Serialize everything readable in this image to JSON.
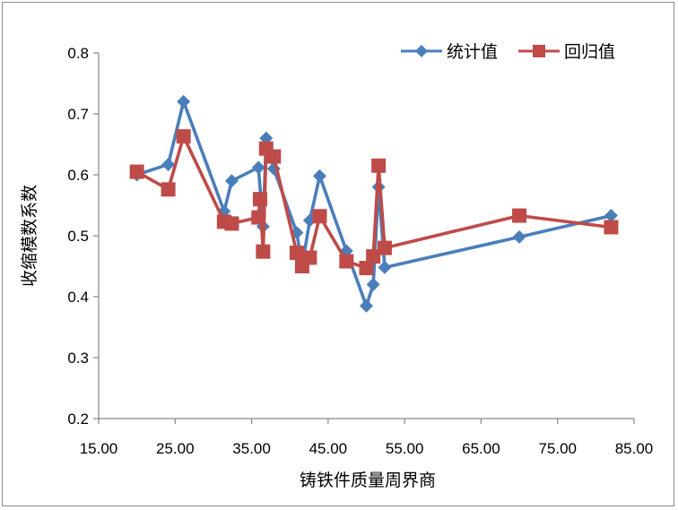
{
  "chart_data": {
    "type": "line",
    "xlabel": "铸铁件质量周界商",
    "ylabel": "收缩模数系数",
    "xlim": [
      15,
      85
    ],
    "ylim": [
      0.2,
      0.8
    ],
    "x_ticks": [
      "15.00",
      "25.00",
      "35.00",
      "45.00",
      "55.00",
      "65.00",
      "75.00",
      "85.00"
    ],
    "y_ticks": [
      "0.2",
      "0.3",
      "0.4",
      "0.5",
      "0.6",
      "0.7",
      "0.8"
    ],
    "grid": false,
    "legend_position": "top-right",
    "series": [
      {
        "name": "统计值",
        "color": "#4a7ebb",
        "marker": "diamond",
        "points": [
          [
            20.0,
            0.6
          ],
          [
            24.1,
            0.617
          ],
          [
            26.1,
            0.72
          ],
          [
            31.4,
            0.54
          ],
          [
            32.4,
            0.59
          ],
          [
            35.9,
            0.612
          ],
          [
            36.5,
            0.515
          ],
          [
            36.9,
            0.66
          ],
          [
            37.9,
            0.61
          ],
          [
            40.9,
            0.505
          ],
          [
            41.6,
            0.45
          ],
          [
            42.6,
            0.525
          ],
          [
            43.9,
            0.598
          ],
          [
            47.4,
            0.475
          ],
          [
            50.0,
            0.385
          ],
          [
            50.9,
            0.42
          ],
          [
            51.6,
            0.58
          ],
          [
            52.4,
            0.448
          ],
          [
            70.0,
            0.498
          ],
          [
            82.0,
            0.533
          ]
        ]
      },
      {
        "name": "回归值",
        "color": "#be4b48",
        "marker": "square",
        "points": [
          [
            20.0,
            0.605
          ],
          [
            24.1,
            0.576
          ],
          [
            26.1,
            0.663
          ],
          [
            31.4,
            0.523
          ],
          [
            32.4,
            0.52
          ],
          [
            35.9,
            0.53
          ],
          [
            36.1,
            0.56
          ],
          [
            36.5,
            0.474
          ],
          [
            36.9,
            0.643
          ],
          [
            37.9,
            0.63
          ],
          [
            40.9,
            0.472
          ],
          [
            41.6,
            0.45
          ],
          [
            42.6,
            0.464
          ],
          [
            43.9,
            0.532
          ],
          [
            47.4,
            0.458
          ],
          [
            50.0,
            0.447
          ],
          [
            50.9,
            0.466
          ],
          [
            51.6,
            0.615
          ],
          [
            52.4,
            0.48
          ],
          [
            70.0,
            0.533
          ],
          [
            82.0,
            0.514
          ]
        ]
      }
    ]
  }
}
